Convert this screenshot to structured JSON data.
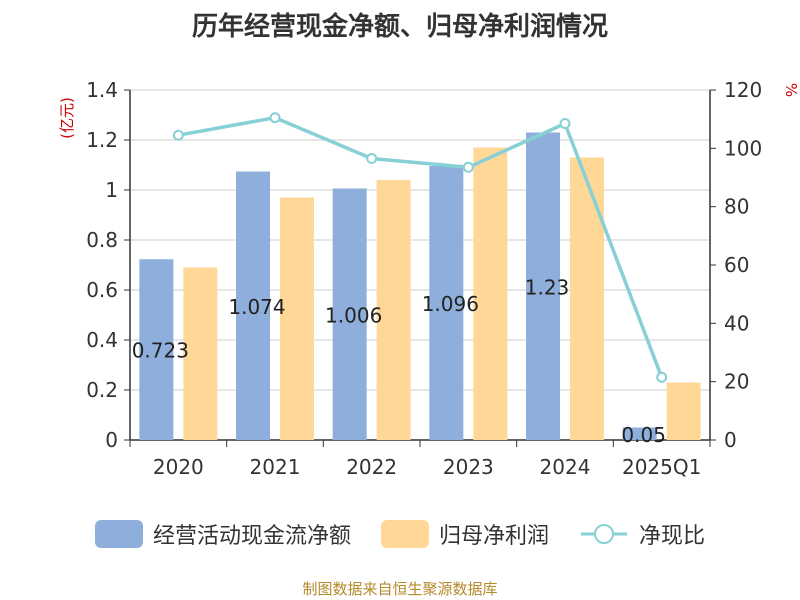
{
  "title": "历年经营现金净额、归母净利润情况",
  "source": "制图数据来自恒生聚源数据库",
  "colors": {
    "bar1": "#8eaedb",
    "bar2": "#ffd898",
    "line": "#86d0d6",
    "ylabel_left": "#cc0000",
    "ylabel_right": "#cc0000"
  },
  "chart_data": {
    "type": "bar",
    "categories": [
      "2020",
      "2021",
      "2022",
      "2023",
      "2024",
      "2025Q1"
    ],
    "ylabel_left": "(亿元)",
    "ylabel_right": "%",
    "ylim_left": [
      0,
      1.4
    ],
    "ylim_right": [
      0,
      120
    ],
    "yticks_left": [
      "0",
      "0.2",
      "0.4",
      "0.6",
      "0.8",
      "1",
      "1.2",
      "1.4"
    ],
    "yticks_right": [
      "0",
      "20",
      "40",
      "60",
      "80",
      "100",
      "120"
    ],
    "series": [
      {
        "name": "经营活动现金流净额",
        "type": "bar",
        "axis": "left",
        "values": [
          0.723,
          1.074,
          1.006,
          1.096,
          1.23,
          0.05
        ],
        "labels": [
          "0.723",
          "1.074",
          "1.006",
          "1.096",
          "1.23",
          "0.05"
        ]
      },
      {
        "name": "归母净利润",
        "type": "bar",
        "axis": "left",
        "values": [
          0.69,
          0.97,
          1.04,
          1.17,
          1.13,
          0.23
        ]
      },
      {
        "name": "净现比",
        "type": "line",
        "axis": "right",
        "values": [
          104.5,
          110.5,
          96.5,
          93.5,
          108.5,
          21.5
        ]
      }
    ],
    "grid": true,
    "legend": "bottom"
  }
}
